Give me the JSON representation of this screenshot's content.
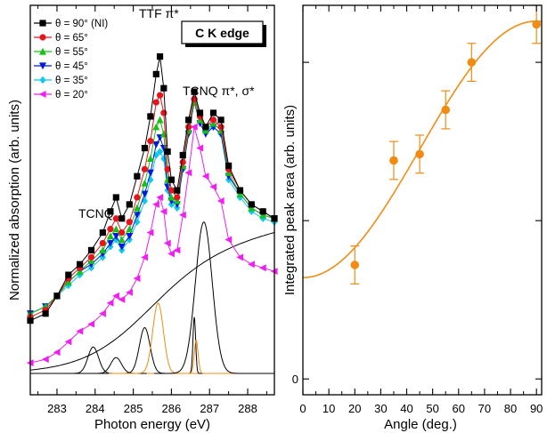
{
  "chart_data": [
    {
      "type": "line",
      "panel": "left",
      "xlabel": "Photon energy (eV)",
      "ylabel": "Normalized absorption (arb. units)",
      "xlim": [
        282.3,
        288.7
      ],
      "ylim": [
        0,
        100
      ],
      "x_ticks": [
        283,
        284,
        285,
        286,
        287,
        288
      ],
      "y_tick_labels": "none",
      "annotations": {
        "box": "C K edge",
        "peak_ttf": "TTF π*",
        "peak_tcnq": "TCNQ π*, σ*",
        "tcnq": "TCNQ"
      },
      "legend_position": "top-left",
      "series": [
        {
          "name": "θ = 90° (NI)",
          "color": "#000000",
          "marker": "square",
          "x": [
            282.3,
            282.7,
            283.0,
            283.3,
            283.6,
            283.9,
            284.2,
            284.4,
            284.55,
            284.7,
            284.9,
            285.1,
            285.3,
            285.45,
            285.6,
            285.7,
            285.8,
            285.9,
            286.0,
            286.15,
            286.3,
            286.45,
            286.6,
            286.75,
            286.9,
            287.1,
            287.3,
            287.5,
            287.8,
            288.1,
            288.4,
            288.7
          ],
          "y": [
            15,
            17,
            22,
            28,
            31,
            35,
            40,
            46,
            50,
            44,
            48,
            56,
            64,
            73,
            85,
            90,
            81,
            63,
            55,
            52,
            62,
            72,
            80,
            74,
            70,
            74,
            72,
            59,
            52,
            48,
            46,
            44
          ]
        },
        {
          "name": "θ = 65°",
          "color": "#e8141c",
          "marker": "circle",
          "x": [
            282.3,
            282.7,
            283.0,
            283.3,
            283.6,
            283.9,
            284.2,
            284.4,
            284.55,
            284.7,
            284.9,
            285.1,
            285.3,
            285.45,
            285.6,
            285.7,
            285.8,
            285.9,
            286.0,
            286.15,
            286.3,
            286.45,
            286.6,
            286.75,
            286.9,
            287.1,
            287.3,
            287.5,
            287.8,
            288.1,
            288.4,
            288.7
          ],
          "y": [
            16,
            18,
            22,
            27,
            30,
            33,
            37,
            41,
            44,
            40,
            43,
            50,
            58,
            66,
            77,
            79,
            74,
            58,
            52,
            50,
            60,
            70,
            78,
            73,
            70,
            72,
            70,
            58,
            52,
            48,
            46,
            44
          ]
        },
        {
          "name": "θ = 55°",
          "color": "#16c016",
          "marker": "triangle-up",
          "x": [
            282.3,
            282.7,
            283.0,
            283.3,
            283.6,
            283.9,
            284.2,
            284.4,
            284.55,
            284.7,
            284.9,
            285.1,
            285.3,
            285.45,
            285.6,
            285.7,
            285.8,
            285.9,
            286.0,
            286.15,
            286.3,
            286.45,
            286.6,
            286.75,
            286.9,
            287.1,
            287.3,
            287.5,
            287.8,
            288.1,
            288.4,
            288.7
          ],
          "y": [
            17,
            19,
            22,
            26,
            29,
            32,
            35,
            39,
            41,
            38,
            41,
            47,
            54,
            61,
            70,
            72,
            68,
            55,
            50,
            49,
            59,
            69,
            77,
            72,
            69,
            71,
            69,
            57,
            51,
            47,
            45,
            44
          ]
        },
        {
          "name": "θ = 45°",
          "color": "#0018e0",
          "marker": "triangle-down",
          "x": [
            282.3,
            282.7,
            283.0,
            283.3,
            283.6,
            283.9,
            284.2,
            284.4,
            284.55,
            284.7,
            284.9,
            285.1,
            285.3,
            285.45,
            285.6,
            285.7,
            285.8,
            285.9,
            286.0,
            286.15,
            286.3,
            286.45,
            286.6,
            286.75,
            286.9,
            287.1,
            287.3,
            287.5,
            287.8,
            288.1,
            288.4,
            288.7
          ],
          "y": [
            17,
            19,
            22,
            26,
            29,
            31,
            34,
            37,
            39,
            36,
            39,
            45,
            51,
            57,
            65,
            67,
            64,
            53,
            49,
            48,
            58,
            68,
            77,
            71,
            68,
            70,
            68,
            56,
            51,
            47,
            45,
            44
          ]
        },
        {
          "name": "θ = 35°",
          "color": "#12c8e6",
          "marker": "diamond",
          "x": [
            282.3,
            282.7,
            283.0,
            283.3,
            283.6,
            283.9,
            284.2,
            284.4,
            284.55,
            284.7,
            284.9,
            285.1,
            285.3,
            285.45,
            285.6,
            285.7,
            285.8,
            285.9,
            286.0,
            286.15,
            286.3,
            286.45,
            286.6,
            286.75,
            286.9,
            287.1,
            287.3,
            287.5,
            287.8,
            288.1,
            288.4,
            288.7
          ],
          "y": [
            17,
            19,
            22,
            25,
            28,
            30,
            33,
            36,
            38,
            35,
            38,
            43,
            49,
            55,
            62,
            63,
            61,
            52,
            48,
            47,
            58,
            69,
            80,
            73,
            69,
            70,
            68,
            55,
            50,
            46,
            44,
            43
          ]
        },
        {
          "name": "θ = 20°",
          "color": "#f01ef0",
          "marker": "triangle-left",
          "x": [
            282.3,
            282.7,
            283.0,
            283.3,
            283.6,
            283.9,
            284.2,
            284.4,
            284.55,
            284.7,
            284.9,
            285.1,
            285.3,
            285.45,
            285.6,
            285.7,
            285.8,
            285.9,
            286.0,
            286.15,
            286.3,
            286.45,
            286.6,
            286.75,
            286.9,
            287.1,
            287.3,
            287.5,
            287.8,
            288.1,
            288.4,
            288.7
          ],
          "y": [
            3,
            4,
            6,
            9,
            12,
            14,
            17,
            20,
            22,
            21,
            23,
            27,
            33,
            40,
            48,
            50,
            46,
            37,
            34,
            35,
            45,
            57,
            70,
            64,
            56,
            53,
            49,
            38,
            33,
            31,
            30,
            29
          ]
        }
      ],
      "fit_components": [
        {
          "color": "#000000",
          "shape": "step",
          "y_end": 34
        },
        {
          "color": "#000000",
          "shape": "peak",
          "center": 283.95,
          "height": 7.5
        },
        {
          "color": "#000000",
          "shape": "peak",
          "center": 284.55,
          "height": 4.5
        },
        {
          "color": "#000000",
          "shape": "peak",
          "center": 285.3,
          "height": 13
        },
        {
          "color": "#f08c14",
          "shape": "peak",
          "center": 285.65,
          "height": 20
        },
        {
          "color": "#000000",
          "shape": "peak",
          "center": 286.6,
          "height": 16
        },
        {
          "color": "#f08c14",
          "shape": "peak",
          "center": 286.65,
          "height": 9.5
        },
        {
          "color": "#000000",
          "shape": "peak",
          "center": 286.85,
          "height": 43
        }
      ]
    },
    {
      "type": "scatter",
      "panel": "right",
      "xlabel": "Angle (deg.)",
      "ylabel": "Integrated peak area (arb. units)",
      "xlim": [
        0,
        92
      ],
      "x_ticks": [
        0,
        10,
        20,
        30,
        40,
        50,
        60,
        70,
        80,
        90
      ],
      "ylim": [
        -0.05,
        1.18
      ],
      "y_ticks": [
        0
      ],
      "color": "#f08c14",
      "points": [
        {
          "x": 20,
          "y": 0.36,
          "err": 0.06
        },
        {
          "x": 35,
          "y": 0.69,
          "err": 0.06
        },
        {
          "x": 45,
          "y": 0.71,
          "err": 0.06
        },
        {
          "x": 55,
          "y": 0.85,
          "err": 0.06
        },
        {
          "x": 65,
          "y": 1.0,
          "err": 0.06
        },
        {
          "x": 90,
          "y": 1.12,
          "err": 0.06
        }
      ],
      "fit": {
        "form": "A + B*sin^2(angle)",
        "A": 0.32,
        "B": 0.81
      }
    }
  ]
}
